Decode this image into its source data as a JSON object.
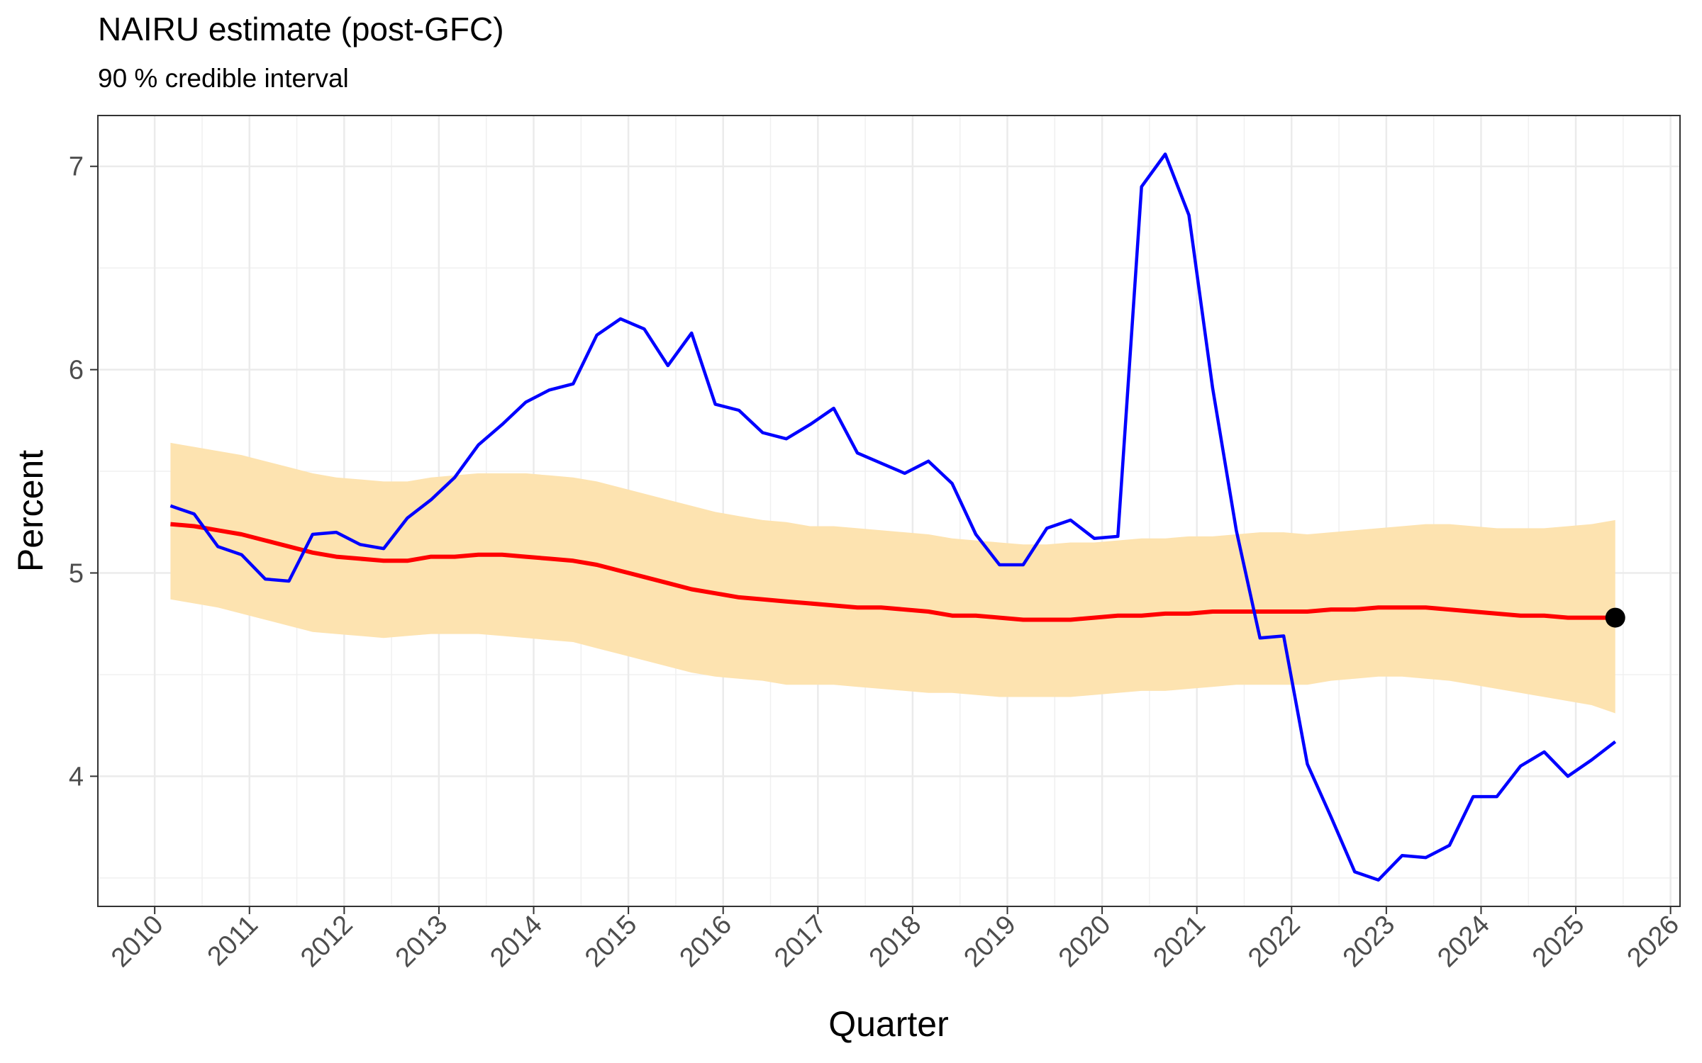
{
  "chart_data": {
    "type": "line",
    "title": "NAIRU estimate (post-GFC)",
    "subtitle": "90 % credible interval",
    "xlabel": "Quarter",
    "ylabel": "Percent",
    "xlim": [
      2009.4,
      2026.1
    ],
    "ylim": [
      3.36,
      7.25
    ],
    "x_ticks": [
      "2010",
      "2011",
      "2012",
      "2013",
      "2014",
      "2015",
      "2016",
      "2017",
      "2018",
      "2019",
      "2020",
      "2021",
      "2022",
      "2023",
      "2024",
      "2025",
      "2026"
    ],
    "y_ticks": [
      "4",
      "5",
      "6",
      "7"
    ],
    "grid": true,
    "colors": {
      "unemployment": "#0000ff",
      "nairu": "#ff0000",
      "band": "#fde3b0",
      "endpoint": "#000000"
    },
    "quarters": [
      "2010-03-01",
      "2010-06-01",
      "2010-09-01",
      "2010-12-01",
      "2011-03-01",
      "2011-06-01",
      "2011-09-01",
      "2011-12-01",
      "2012-03-01",
      "2012-06-01",
      "2012-09-01",
      "2012-12-01",
      "2013-03-01",
      "2013-06-01",
      "2013-09-01",
      "2013-12-01",
      "2014-03-01",
      "2014-06-01",
      "2014-09-01",
      "2014-12-01",
      "2015-03-01",
      "2015-06-01",
      "2015-09-01",
      "2015-12-01",
      "2016-03-01",
      "2016-06-01",
      "2016-09-01",
      "2016-12-01",
      "2017-03-01",
      "2017-06-01",
      "2017-09-01",
      "2017-12-01",
      "2018-03-01",
      "2018-06-01",
      "2018-09-01",
      "2018-12-01",
      "2019-03-01",
      "2019-06-01",
      "2019-09-01",
      "2019-12-01",
      "2020-03-01",
      "2020-06-01",
      "2020-09-01",
      "2020-12-01",
      "2021-03-01",
      "2021-06-01",
      "2021-09-01",
      "2021-12-01",
      "2022-03-01",
      "2022-06-01",
      "2022-09-01",
      "2022-12-01",
      "2023-03-01",
      "2023-06-01",
      "2023-09-01",
      "2023-12-01",
      "2024-03-01",
      "2024-06-01",
      "2024-09-01",
      "2024-12-01",
      "2025-03-01",
      "2025-06-01"
    ],
    "series": [
      {
        "values": [
          5.33,
          5.29,
          5.13,
          5.09,
          4.97,
          4.96,
          5.19,
          5.2,
          5.14,
          5.12,
          5.27,
          5.36,
          5.47,
          5.63,
          5.73,
          5.84,
          5.9,
          5.93,
          6.17,
          6.25,
          6.2,
          6.02,
          6.18,
          5.83,
          5.8,
          5.69,
          5.66,
          5.73,
          5.81,
          5.59,
          5.54,
          5.49,
          5.55,
          5.44,
          5.19,
          5.04,
          5.04,
          5.22,
          5.26,
          5.17,
          5.18,
          6.9,
          7.06,
          6.76,
          5.91,
          5.21,
          4.68,
          4.69,
          4.06,
          3.8,
          3.53,
          3.49,
          3.61,
          3.6,
          3.66,
          3.9,
          3.9,
          4.05,
          4.12,
          4.0,
          4.08,
          4.17
        ]
      },
      {
        "values": [
          5.24,
          5.23,
          5.21,
          5.19,
          5.16,
          5.13,
          5.1,
          5.08,
          5.07,
          5.06,
          5.06,
          5.08,
          5.08,
          5.09,
          5.09,
          5.08,
          5.07,
          5.06,
          5.04,
          5.01,
          4.98,
          4.95,
          4.92,
          4.9,
          4.88,
          4.87,
          4.86,
          4.85,
          4.84,
          4.83,
          4.83,
          4.82,
          4.81,
          4.79,
          4.79,
          4.78,
          4.77,
          4.77,
          4.77,
          4.78,
          4.79,
          4.79,
          4.8,
          4.8,
          4.81,
          4.81,
          4.81,
          4.81,
          4.81,
          4.82,
          4.82,
          4.83,
          4.83,
          4.83,
          4.82,
          4.81,
          4.8,
          4.79,
          4.79,
          4.78,
          4.78,
          4.78
        ]
      },
      {
        "lower": [
          4.87,
          4.85,
          4.83,
          4.8,
          4.77,
          4.74,
          4.71,
          4.7,
          4.69,
          4.68,
          4.69,
          4.7,
          4.7,
          4.7,
          4.69,
          4.68,
          4.67,
          4.66,
          4.63,
          4.6,
          4.57,
          4.54,
          4.51,
          4.49,
          4.48,
          4.47,
          4.45,
          4.45,
          4.45,
          4.44,
          4.43,
          4.42,
          4.41,
          4.41,
          4.4,
          4.39,
          4.39,
          4.39,
          4.39,
          4.4,
          4.41,
          4.42,
          4.42,
          4.43,
          4.44,
          4.45,
          4.45,
          4.45,
          4.45,
          4.47,
          4.48,
          4.49,
          4.49,
          4.48,
          4.47,
          4.45,
          4.43,
          4.41,
          4.39,
          4.37,
          4.35,
          4.31
        ],
        "upper": [
          5.64,
          5.62,
          5.6,
          5.58,
          5.55,
          5.52,
          5.49,
          5.47,
          5.46,
          5.45,
          5.45,
          5.47,
          5.48,
          5.49,
          5.49,
          5.49,
          5.48,
          5.47,
          5.45,
          5.42,
          5.39,
          5.36,
          5.33,
          5.3,
          5.28,
          5.26,
          5.25,
          5.23,
          5.23,
          5.22,
          5.21,
          5.2,
          5.19,
          5.17,
          5.16,
          5.15,
          5.14,
          5.14,
          5.15,
          5.15,
          5.16,
          5.17,
          5.17,
          5.18,
          5.18,
          5.19,
          5.2,
          5.2,
          5.19,
          5.2,
          5.21,
          5.22,
          5.23,
          5.24,
          5.24,
          5.23,
          5.22,
          5.22,
          5.22,
          5.23,
          5.24,
          5.26
        ]
      }
    ],
    "endpoint": {
      "x": "2025-06-01",
      "y": 4.78
    }
  }
}
